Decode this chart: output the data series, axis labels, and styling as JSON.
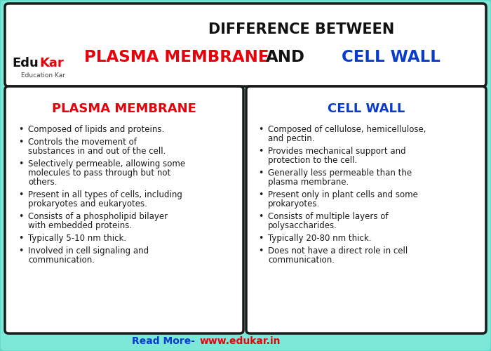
{
  "bg_color": "#7de8d8",
  "title_line1": "DIFFERENCE BETWEEN",
  "title_line2_part1": "PLASMA MEMBRANE",
  "title_line2_and": "AND",
  "title_line2_part2": "CELL WALL",
  "title_color1": "#e8000a",
  "title_color2": "#0a3ccc",
  "title_black": "#111111",
  "header_bg": "#FFFFFF",
  "left_title": "PLASMA MEMBRANE",
  "left_title_color": "#e8000a",
  "right_title": "CELL WALL",
  "right_title_color": "#0a3ccc",
  "left_points": [
    "Composed of lipids and proteins.",
    "Controls the movement of\nsubstances in and out of the cell.",
    "Selectively permeable, allowing some\nmolecules to pass through but not\nothers.",
    "Present in all types of cells, including\nprokaryotes and eukaryotes.",
    "Consists of a phospholipid bilayer\nwith embedded proteins.",
    "Typically 5-10 nm thick.",
    "Involved in cell signaling and\ncommunication."
  ],
  "right_points": [
    "Composed of cellulose, hemicellulose,\nand pectin.",
    "Provides mechanical support and\nprotection to the cell.",
    "Generally less permeable than the\nplasma membrane.",
    "Present only in plant cells and some\nprokaryotes.",
    "Consists of multiple layers of\npolysaccharides.",
    "Typically 20-80 nm thick.",
    "Does not have a direct role in cell\ncommunication."
  ],
  "footer_text": "Read More- ",
  "footer_url": "www.edukar.in",
  "footer_text_color": "#0a3ccc",
  "footer_url_color": "#e8000a",
  "box_border_color": "#1a1a1a",
  "text_color": "#1a1a1a",
  "edukar_edu": "Edu",
  "edukar_kar": "Kar",
  "edukar_sub": "Education Kar"
}
